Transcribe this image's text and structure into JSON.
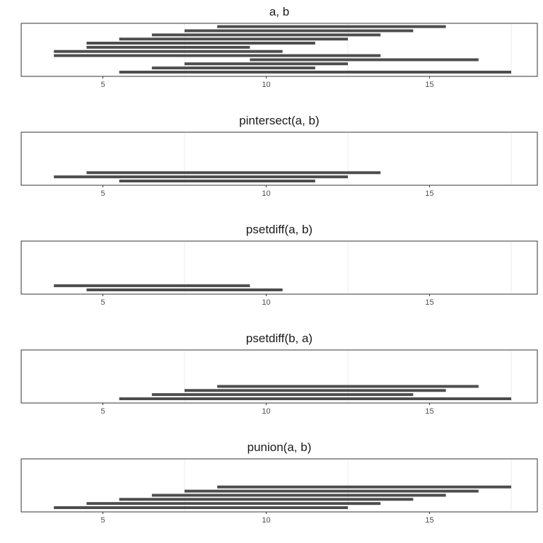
{
  "chart_data": [
    {
      "type": "bar",
      "title": "a, b",
      "xlim": [
        2.5,
        18.3
      ],
      "x_ticks": [
        5,
        10,
        15
      ],
      "x_minor_gridlines": [
        7.5,
        12.5,
        17.5
      ],
      "grid": true,
      "levels": 12,
      "intervals": [
        {
          "start": 8.5,
          "end": 15.5,
          "level": 12
        },
        {
          "start": 7.5,
          "end": 14.5,
          "level": 11
        },
        {
          "start": 6.5,
          "end": 13.5,
          "level": 10
        },
        {
          "start": 5.5,
          "end": 12.5,
          "level": 9
        },
        {
          "start": 4.5,
          "end": 11.5,
          "level": 8
        },
        {
          "start": 4.5,
          "end": 9.5,
          "level": 7
        },
        {
          "start": 3.5,
          "end": 10.5,
          "level": 6
        },
        {
          "start": 3.5,
          "end": 13.5,
          "level": 5
        },
        {
          "start": 9.5,
          "end": 16.5,
          "level": 4
        },
        {
          "start": 7.5,
          "end": 12.5,
          "level": 3
        },
        {
          "start": 6.5,
          "end": 11.5,
          "level": 2
        },
        {
          "start": 5.5,
          "end": 17.5,
          "level": 1
        }
      ]
    },
    {
      "type": "bar",
      "title": "pintersect(a, b)",
      "xlim": [
        2.5,
        18.3
      ],
      "x_ticks": [
        5,
        10,
        15
      ],
      "x_minor_gridlines": [
        7.5,
        12.5,
        17.5
      ],
      "grid": true,
      "levels": 12,
      "intervals": [
        {
          "start": 4.5,
          "end": 13.5,
          "level": 3
        },
        {
          "start": 3.5,
          "end": 12.5,
          "level": 2
        },
        {
          "start": 5.5,
          "end": 11.5,
          "level": 1
        }
      ]
    },
    {
      "type": "bar",
      "title": "psetdiff(a, b)",
      "xlim": [
        2.5,
        18.3
      ],
      "x_ticks": [
        5,
        10,
        15
      ],
      "x_minor_gridlines": [
        7.5,
        12.5,
        17.5
      ],
      "grid": true,
      "levels": 12,
      "intervals": [
        {
          "start": 3.5,
          "end": 9.5,
          "level": 2
        },
        {
          "start": 4.5,
          "end": 10.5,
          "level": 1
        }
      ]
    },
    {
      "type": "bar",
      "title": "psetdiff(b, a)",
      "xlim": [
        2.5,
        18.3
      ],
      "x_ticks": [
        5,
        10,
        15
      ],
      "x_minor_gridlines": [
        7.5,
        12.5,
        17.5
      ],
      "grid": true,
      "levels": 12,
      "intervals": [
        {
          "start": 8.5,
          "end": 16.5,
          "level": 4
        },
        {
          "start": 7.5,
          "end": 15.5,
          "level": 3
        },
        {
          "start": 6.5,
          "end": 14.5,
          "level": 2
        },
        {
          "start": 5.5,
          "end": 17.5,
          "level": 1
        }
      ]
    },
    {
      "type": "bar",
      "title": "punion(a, b)",
      "xlim": [
        2.5,
        18.3
      ],
      "x_ticks": [
        5,
        10,
        15
      ],
      "x_minor_gridlines": [
        7.5,
        12.5,
        17.5
      ],
      "grid": true,
      "levels": 12,
      "intervals": [
        {
          "start": 8.5,
          "end": 17.5,
          "level": 6
        },
        {
          "start": 7.5,
          "end": 16.5,
          "level": 5
        },
        {
          "start": 6.5,
          "end": 15.5,
          "level": 4
        },
        {
          "start": 5.5,
          "end": 14.5,
          "level": 3
        },
        {
          "start": 4.5,
          "end": 13.5,
          "level": 2
        },
        {
          "start": 3.5,
          "end": 12.5,
          "level": 1
        }
      ]
    }
  ]
}
